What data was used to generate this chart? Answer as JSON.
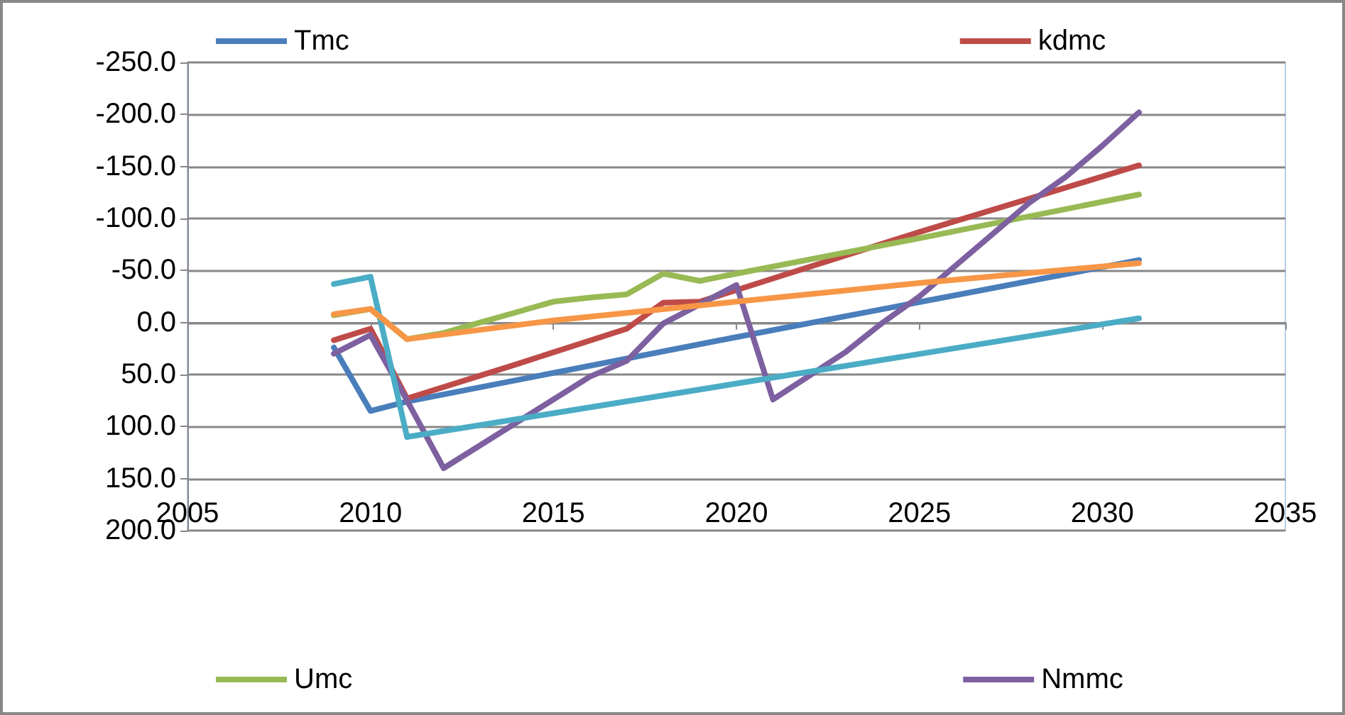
{
  "chart_data": {
    "type": "line",
    "xlim": [
      2005,
      2035
    ],
    "xticks": [
      2005,
      2010,
      2015,
      2020,
      2025,
      2030,
      2035
    ],
    "ylim": [
      200,
      -250
    ],
    "yticks": [
      {
        "value": -250,
        "label": "-250.0"
      },
      {
        "value": -200,
        "label": "-200.0"
      },
      {
        "value": -150,
        "label": "-150.0"
      },
      {
        "value": -100,
        "label": "-100.0"
      },
      {
        "value": -50,
        "label": "-50.0"
      },
      {
        "value": 0,
        "label": "0.0"
      },
      {
        "value": 50,
        "label": "50.0"
      },
      {
        "value": 100,
        "label": "100.0"
      },
      {
        "value": 150,
        "label": "150.0"
      },
      {
        "value": 200,
        "label": "200.0"
      }
    ],
    "grid": "y",
    "legend": "bottom",
    "marker": "none",
    "line_style": "solid",
    "series": [
      {
        "name": "Tmc",
        "color": "#4a7ebb",
        "x": [
          2009,
          2010,
          2011,
          2020,
          2031
        ],
        "values": [
          24,
          85,
          76,
          14,
          -60
        ]
      },
      {
        "name": "kdmc",
        "color": "#be4b48",
        "x": [
          2009,
          2010,
          2011,
          2014,
          2017,
          2018,
          2019,
          2025,
          2031
        ],
        "values": [
          17,
          6,
          73,
          40,
          6,
          -19,
          -20,
          -87,
          -151
        ]
      },
      {
        "name": "Umc",
        "color": "#98b954",
        "x": [
          2009,
          2010,
          2011,
          2012,
          2013,
          2014,
          2015,
          2016,
          2017,
          2018,
          2019,
          2020,
          2025,
          2031
        ],
        "values": [
          -7,
          -13,
          16,
          10,
          0,
          -10,
          -20,
          -24,
          -27,
          -47,
          -40,
          -47,
          -81,
          -123
        ]
      },
      {
        "name": "Nmmc",
        "color": "#7d60a0",
        "x": [
          2009,
          2010,
          2011,
          2012,
          2016,
          2017,
          2018,
          2020,
          2021,
          2023,
          2024,
          2025,
          2026,
          2027,
          2028,
          2029,
          2030,
          2031
        ],
        "values": [
          30,
          12,
          75,
          140,
          52,
          37,
          1,
          -36,
          74,
          28,
          0,
          -25,
          -55,
          -85,
          -115,
          -140,
          -170,
          -202
        ]
      },
      {
        "color": "#4bacc6",
        "x": [
          2009,
          2010,
          2011,
          2031
        ],
        "values": [
          -37,
          -44,
          110,
          -4
        ]
      },
      {
        "color": "#f79646",
        "x": [
          2009,
          2010,
          2011,
          2015,
          2020,
          2025,
          2031
        ],
        "values": [
          -8,
          -13,
          16,
          -2,
          -20,
          -38,
          -57
        ]
      }
    ]
  }
}
